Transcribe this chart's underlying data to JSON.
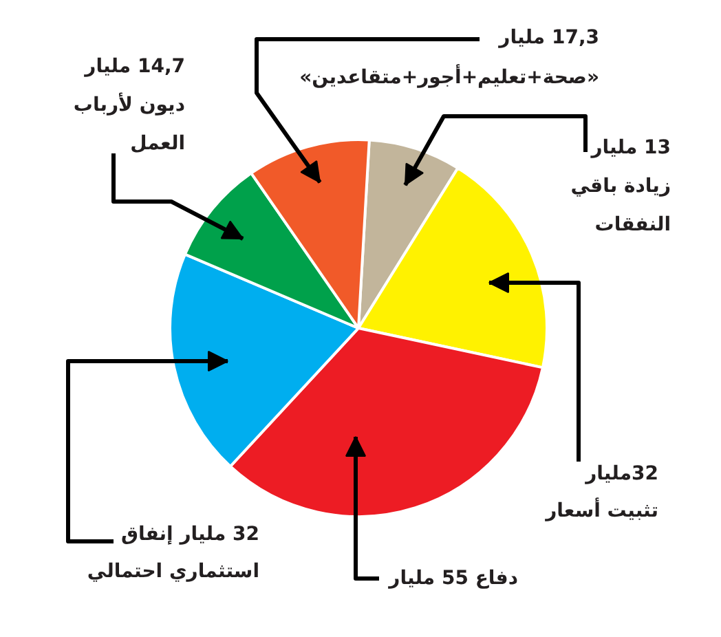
{
  "chart_data": {
    "type": "pie",
    "categories": [
      "13 مليار\nزيادة باقي\nالنفقات",
      "32مليار\nتثبيت أسعار",
      "دفاع 55 مليار",
      "32 مليار إنفاق\nاستثماري احتمالي",
      "14,7 مليار\nديون لأرباب\nالعمل",
      "17,3 مليار\n«صحة+تعليم+أجور+متقاعدين»"
    ],
    "values": [
      13,
      32,
      55,
      32,
      14.7,
      17.3
    ],
    "colors": [
      "#c2b59b",
      "#fff200",
      "#ed1c24",
      "#00aeef",
      "#00a14b",
      "#f15a29"
    ]
  }
}
